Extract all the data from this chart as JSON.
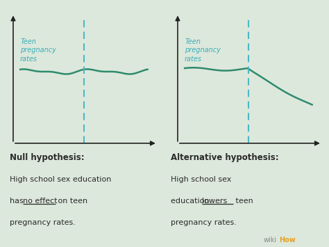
{
  "bg_color": "#dde8dc",
  "line_color": "#2e8b6e",
  "dashed_line_color": "#4bb8c4",
  "axis_color": "#222222",
  "text_color_teal": "#3aafb8",
  "text_color_dark": "#2a2a2a",
  "null_title": "Null hypothesis:",
  "null_body1": "High school sex education",
  "null_body2_pre": "has ",
  "null_body2_under": "no effect",
  "null_body2_post": " on teen",
  "null_body3": "pregnancy rates.",
  "alt_title": "Alternative hypothesis:",
  "alt_body1": "High school sex",
  "alt_body2": "education ",
  "alt_body2_under": "lowers",
  "alt_body2_post": " teen",
  "alt_body3": "pregnancy rates.",
  "hs_label": "High school\nsex education",
  "y_label": "Teen\npregnancy\nrates",
  "font_size_small": 7,
  "font_size_body": 8,
  "font_size_title": 8.5
}
